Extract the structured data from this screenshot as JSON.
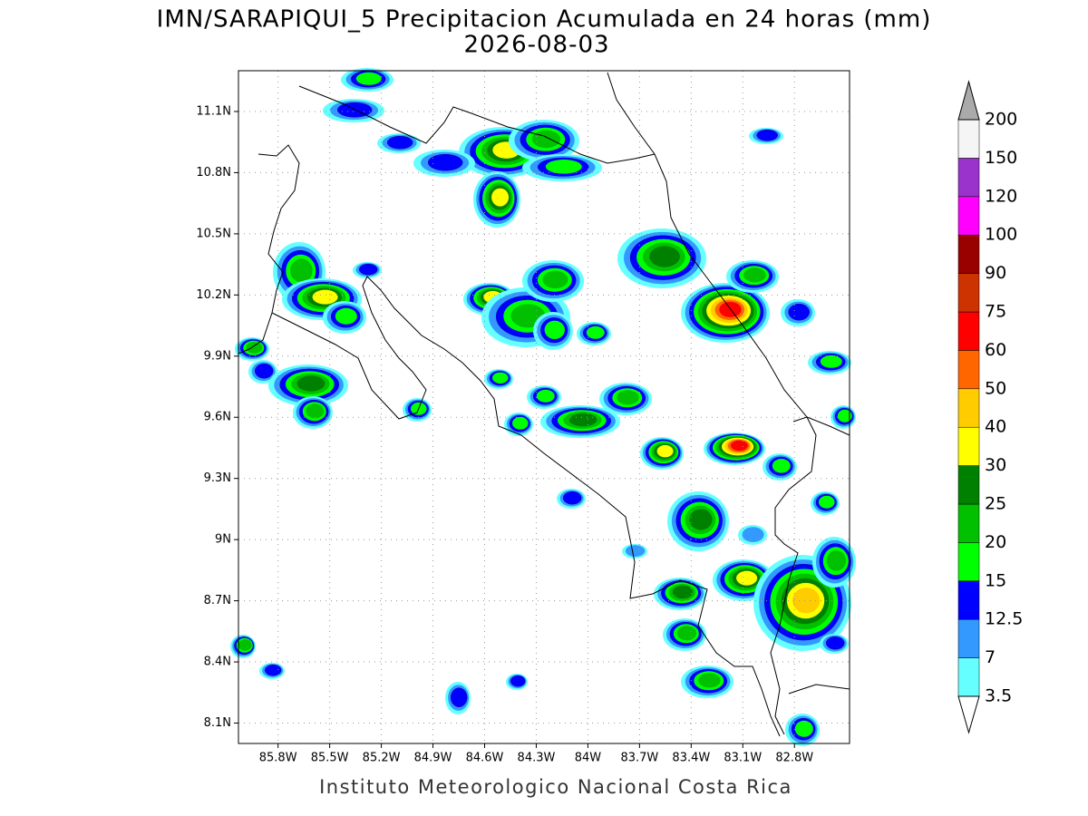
{
  "map": {
    "title": "IMN/SARAPIQUI_5 Precipitacion Acumulada en 24 horas (mm)",
    "date": "2026-08-03",
    "lonlim": [
      -86.03,
      -82.48
    ],
    "latlim": [
      8.0,
      11.3
    ],
    "lat_ticks": [
      {
        "value": 11.1,
        "label": "11.1N"
      },
      {
        "value": 10.8,
        "label": "10.8N"
      },
      {
        "value": 10.5,
        "label": "10.5N"
      },
      {
        "value": 10.2,
        "label": "10.2N"
      },
      {
        "value": 9.9,
        "label": "9.9N"
      },
      {
        "value": 9.6,
        "label": "9.6N"
      },
      {
        "value": 9.3,
        "label": "9.3N"
      },
      {
        "value": 9.0,
        "label": "9N"
      },
      {
        "value": 8.7,
        "label": "8.7N"
      },
      {
        "value": 8.4,
        "label": "8.4N"
      },
      {
        "value": 8.1,
        "label": "8.1N"
      }
    ],
    "lon_ticks": [
      {
        "value": -85.8,
        "label": "85.8W"
      },
      {
        "value": -85.5,
        "label": "85.5W"
      },
      {
        "value": -85.2,
        "label": "85.2W"
      },
      {
        "value": -84.9,
        "label": "84.9W"
      },
      {
        "value": -84.6,
        "label": "84.6W"
      },
      {
        "value": -84.3,
        "label": "84.3W"
      },
      {
        "value": -84.0,
        "label": "84W"
      },
      {
        "value": -83.7,
        "label": "83.7W"
      },
      {
        "value": -83.4,
        "label": "83.4W"
      },
      {
        "value": -83.1,
        "label": "83.1W"
      },
      {
        "value": -82.8,
        "label": "82.8W"
      }
    ],
    "colorbar": {
      "levels": [
        "3.5",
        "7",
        "12.5",
        "15",
        "20",
        "25",
        "30",
        "40",
        "50",
        "60",
        "75",
        "90",
        "100",
        "120",
        "150",
        "200"
      ],
      "colors": [
        "#66ffff",
        "#3399ff",
        "#0000ff",
        "#00ff00",
        "#00c000",
        "#008000",
        "#ffff00",
        "#ffcc00",
        "#ff6600",
        "#ff0000",
        "#cc3300",
        "#990000",
        "#ff00ff",
        "#9933cc",
        "#f5f5f5"
      ],
      "under_color": "#ffffff",
      "over_color": "#aaaaaa"
    },
    "footer": "Instituto Meteorologico Nacional Costa Rica"
  }
}
